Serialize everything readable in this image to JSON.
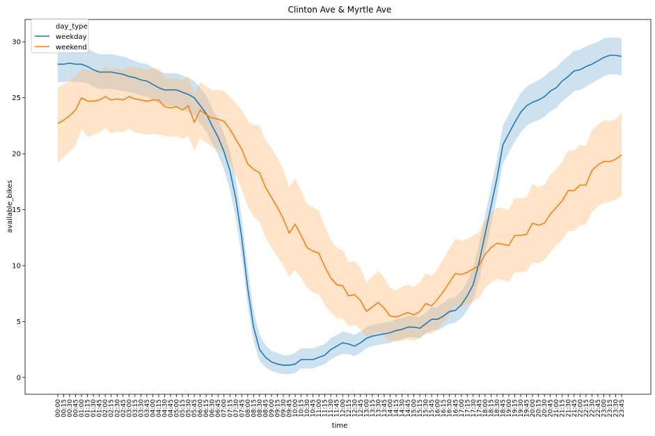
{
  "chart_data": {
    "type": "line",
    "title": "Clinton Ave & Myrtle Ave",
    "xlabel": "time",
    "ylabel": "available_bikes",
    "ylim": [
      -1.5,
      32
    ],
    "yticks": [
      0,
      5,
      10,
      15,
      20,
      25,
      30
    ],
    "grid": false,
    "legend": {
      "title": "day_type",
      "placement": "top-left"
    },
    "x": [
      "00:00",
      "00:15",
      "00:30",
      "00:45",
      "01:00",
      "01:15",
      "01:30",
      "01:45",
      "02:00",
      "02:15",
      "02:30",
      "02:45",
      "03:00",
      "03:15",
      "03:30",
      "03:45",
      "04:00",
      "04:15",
      "04:30",
      "04:45",
      "05:00",
      "05:15",
      "05:30",
      "05:45",
      "06:00",
      "06:15",
      "06:30",
      "06:45",
      "07:00",
      "07:15",
      "07:30",
      "07:45",
      "08:00",
      "08:15",
      "08:30",
      "08:45",
      "09:00",
      "09:15",
      "09:30",
      "09:45",
      "10:00",
      "10:15",
      "10:30",
      "10:45",
      "11:00",
      "11:15",
      "11:30",
      "11:45",
      "12:00",
      "12:15",
      "12:30",
      "12:45",
      "13:00",
      "13:15",
      "13:30",
      "13:45",
      "14:00",
      "14:15",
      "14:30",
      "14:45",
      "15:00",
      "15:15",
      "15:30",
      "15:45",
      "16:00",
      "16:15",
      "16:30",
      "16:45",
      "17:00",
      "17:15",
      "17:30",
      "17:45",
      "18:00",
      "18:15",
      "18:30",
      "18:45",
      "19:00",
      "19:15",
      "19:30",
      "19:45",
      "20:00",
      "20:15",
      "20:30",
      "20:45",
      "21:00",
      "21:15",
      "21:30",
      "21:45",
      "22:00",
      "22:15",
      "22:30",
      "22:45",
      "23:00",
      "23:15",
      "23:30",
      "23:45"
    ],
    "series": [
      {
        "name": "weekday",
        "color": "#1f77b4",
        "band_color": "#1f77b4",
        "values": [
          28.0,
          28.0,
          28.1,
          28.0,
          28.0,
          27.8,
          27.5,
          27.3,
          27.3,
          27.3,
          27.2,
          27.1,
          26.9,
          26.8,
          26.6,
          26.5,
          26.2,
          25.9,
          25.7,
          25.7,
          25.7,
          25.5,
          25.3,
          25.0,
          24.3,
          23.6,
          22.5,
          21.5,
          20.2,
          18.5,
          16.0,
          12.5,
          8.0,
          4.5,
          2.5,
          1.8,
          1.4,
          1.2,
          1.1,
          1.1,
          1.2,
          1.6,
          1.6,
          1.6,
          1.8,
          2.0,
          2.5,
          2.8,
          3.1,
          3.0,
          2.8,
          3.1,
          3.5,
          3.7,
          3.8,
          3.9,
          4.0,
          4.2,
          4.3,
          4.5,
          4.5,
          4.4,
          4.8,
          5.2,
          5.2,
          5.5,
          5.9,
          6.0,
          6.5,
          7.3,
          8.3,
          10.3,
          12.8,
          15.3,
          17.8,
          20.8,
          21.8,
          22.8,
          23.7,
          24.3,
          24.6,
          24.8,
          25.1,
          25.6,
          25.9,
          26.5,
          26.9,
          27.4,
          27.5,
          27.8,
          28.0,
          28.3,
          28.6,
          28.8,
          28.8,
          28.7
        ],
        "lower": [
          26.4,
          26.4,
          26.5,
          26.4,
          26.4,
          26.3,
          26.0,
          25.8,
          25.8,
          25.8,
          25.7,
          25.6,
          25.5,
          25.4,
          25.2,
          25.1,
          24.8,
          24.5,
          24.3,
          24.3,
          24.2,
          24.0,
          23.7,
          23.4,
          22.7,
          22.0,
          20.9,
          19.9,
          18.6,
          16.8,
          14.2,
          10.8,
          6.5,
          3.2,
          1.5,
          0.9,
          0.6,
          0.4,
          0.3,
          0.3,
          0.4,
          0.8,
          0.8,
          0.8,
          1.0,
          1.2,
          1.6,
          1.9,
          2.1,
          2.1,
          1.9,
          2.2,
          2.6,
          2.8,
          2.9,
          3.0,
          3.1,
          3.3,
          3.4,
          3.6,
          3.6,
          3.5,
          3.9,
          4.2,
          4.2,
          4.5,
          4.8,
          4.9,
          5.3,
          6.0,
          6.9,
          8.7,
          11.1,
          13.6,
          16.1,
          19.1,
          20.1,
          21.1,
          21.9,
          22.5,
          22.8,
          23.0,
          23.3,
          23.8,
          24.1,
          24.7,
          25.1,
          25.6,
          25.7,
          26.0,
          26.3,
          26.6,
          26.9,
          27.1,
          27.1,
          27.0
        ],
        "upper": [
          29.6,
          29.6,
          29.7,
          29.6,
          29.6,
          29.4,
          29.1,
          28.9,
          28.9,
          28.9,
          28.8,
          28.7,
          28.5,
          28.3,
          28.1,
          28.0,
          27.7,
          27.4,
          27.2,
          27.2,
          27.2,
          27.0,
          26.8,
          26.5,
          25.9,
          25.2,
          24.1,
          23.1,
          21.8,
          20.2,
          17.8,
          14.3,
          9.8,
          6.0,
          3.8,
          2.9,
          2.4,
          2.2,
          2.0,
          2.0,
          2.2,
          2.6,
          2.6,
          2.6,
          2.8,
          3.0,
          3.5,
          3.8,
          4.1,
          4.0,
          3.8,
          4.1,
          4.5,
          4.7,
          4.8,
          4.9,
          5.0,
          5.2,
          5.3,
          5.5,
          5.5,
          5.4,
          5.8,
          6.3,
          6.3,
          6.7,
          7.1,
          7.2,
          7.7,
          8.6,
          9.8,
          12.0,
          14.5,
          17.0,
          19.5,
          22.5,
          23.5,
          24.5,
          25.4,
          26.0,
          26.3,
          26.6,
          26.9,
          27.4,
          27.7,
          28.3,
          28.7,
          29.2,
          29.3,
          29.6,
          29.8,
          30.0,
          30.3,
          30.4,
          30.4,
          30.3
        ]
      },
      {
        "name": "weekend",
        "color": "#ff7f0e",
        "band_color": "#ffbb78",
        "values": [
          22.7,
          23.0,
          23.4,
          23.9,
          25.0,
          24.7,
          24.7,
          24.8,
          25.1,
          24.8,
          24.9,
          24.8,
          25.1,
          24.9,
          24.8,
          24.7,
          24.8,
          24.8,
          24.2,
          24.1,
          24.2,
          23.9,
          24.3,
          22.8,
          23.9,
          23.5,
          23.2,
          23.1,
          22.9,
          22.2,
          21.3,
          20.4,
          19.1,
          18.6,
          18.3,
          17.0,
          16.1,
          15.2,
          14.2,
          12.9,
          13.7,
          12.7,
          11.6,
          11.3,
          11.1,
          9.9,
          8.9,
          8.3,
          8.2,
          7.3,
          7.4,
          6.9,
          5.9,
          6.3,
          6.7,
          6.2,
          5.5,
          5.4,
          5.6,
          5.8,
          5.6,
          5.9,
          6.6,
          6.4,
          7.0,
          7.7,
          8.5,
          9.3,
          9.2,
          9.4,
          9.7,
          10.0,
          11.0,
          11.6,
          12.0,
          11.9,
          11.8,
          12.7,
          12.7,
          12.8,
          13.8,
          13.6,
          13.8,
          14.6,
          15.2,
          15.8,
          16.7,
          16.7,
          17.2,
          17.2,
          18.5,
          19.0,
          19.3,
          19.3,
          19.5,
          19.9
        ],
        "lower": [
          19.2,
          19.7,
          20.2,
          20.7,
          22.2,
          21.5,
          21.7,
          21.9,
          22.3,
          21.8,
          22.0,
          21.9,
          22.2,
          21.9,
          21.8,
          21.7,
          21.8,
          21.7,
          21.6,
          21.5,
          21.6,
          21.3,
          21.6,
          20.2,
          21.4,
          21.0,
          20.6,
          20.4,
          20.1,
          19.2,
          18.0,
          16.8,
          15.3,
          14.4,
          13.9,
          12.5,
          11.6,
          10.8,
          10.0,
          9.0,
          9.6,
          8.9,
          8.0,
          7.6,
          7.4,
          6.5,
          5.8,
          5.3,
          5.3,
          4.6,
          4.7,
          4.3,
          3.6,
          3.8,
          4.1,
          3.7,
          3.3,
          3.2,
          3.3,
          3.4,
          3.3,
          3.5,
          4.0,
          3.9,
          4.4,
          4.9,
          5.6,
          6.3,
          6.3,
          6.5,
          6.8,
          7.1,
          8.0,
          8.5,
          8.8,
          8.7,
          8.6,
          9.4,
          9.4,
          9.5,
          10.3,
          10.2,
          10.5,
          11.2,
          11.8,
          12.3,
          13.1,
          13.1,
          13.6,
          13.7,
          14.8,
          15.3,
          15.6,
          15.7,
          15.9,
          16.2
        ],
        "upper": [
          25.9,
          26.2,
          26.6,
          26.9,
          27.6,
          27.5,
          27.4,
          27.5,
          27.8,
          27.6,
          27.6,
          27.5,
          27.8,
          27.7,
          27.6,
          27.5,
          27.6,
          27.6,
          26.8,
          26.7,
          26.8,
          26.5,
          26.9,
          25.3,
          26.4,
          26.0,
          25.7,
          25.7,
          25.6,
          25.1,
          24.5,
          23.9,
          22.9,
          22.6,
          22.5,
          21.2,
          20.5,
          19.6,
          18.6,
          17.0,
          17.8,
          16.7,
          15.5,
          15.2,
          14.9,
          13.5,
          12.3,
          11.6,
          11.4,
          10.3,
          10.4,
          9.8,
          8.5,
          9.0,
          9.5,
          8.9,
          8.0,
          7.8,
          8.1,
          8.3,
          8.1,
          8.5,
          9.3,
          9.1,
          9.7,
          10.6,
          11.5,
          12.4,
          12.2,
          12.4,
          12.7,
          13.0,
          14.1,
          14.7,
          15.2,
          15.1,
          15.0,
          16.0,
          16.0,
          16.1,
          17.3,
          17.0,
          17.2,
          18.1,
          18.6,
          19.3,
          20.3,
          20.3,
          20.8,
          20.7,
          22.1,
          22.6,
          23.0,
          22.9,
          23.1,
          23.6
        ]
      }
    ]
  }
}
